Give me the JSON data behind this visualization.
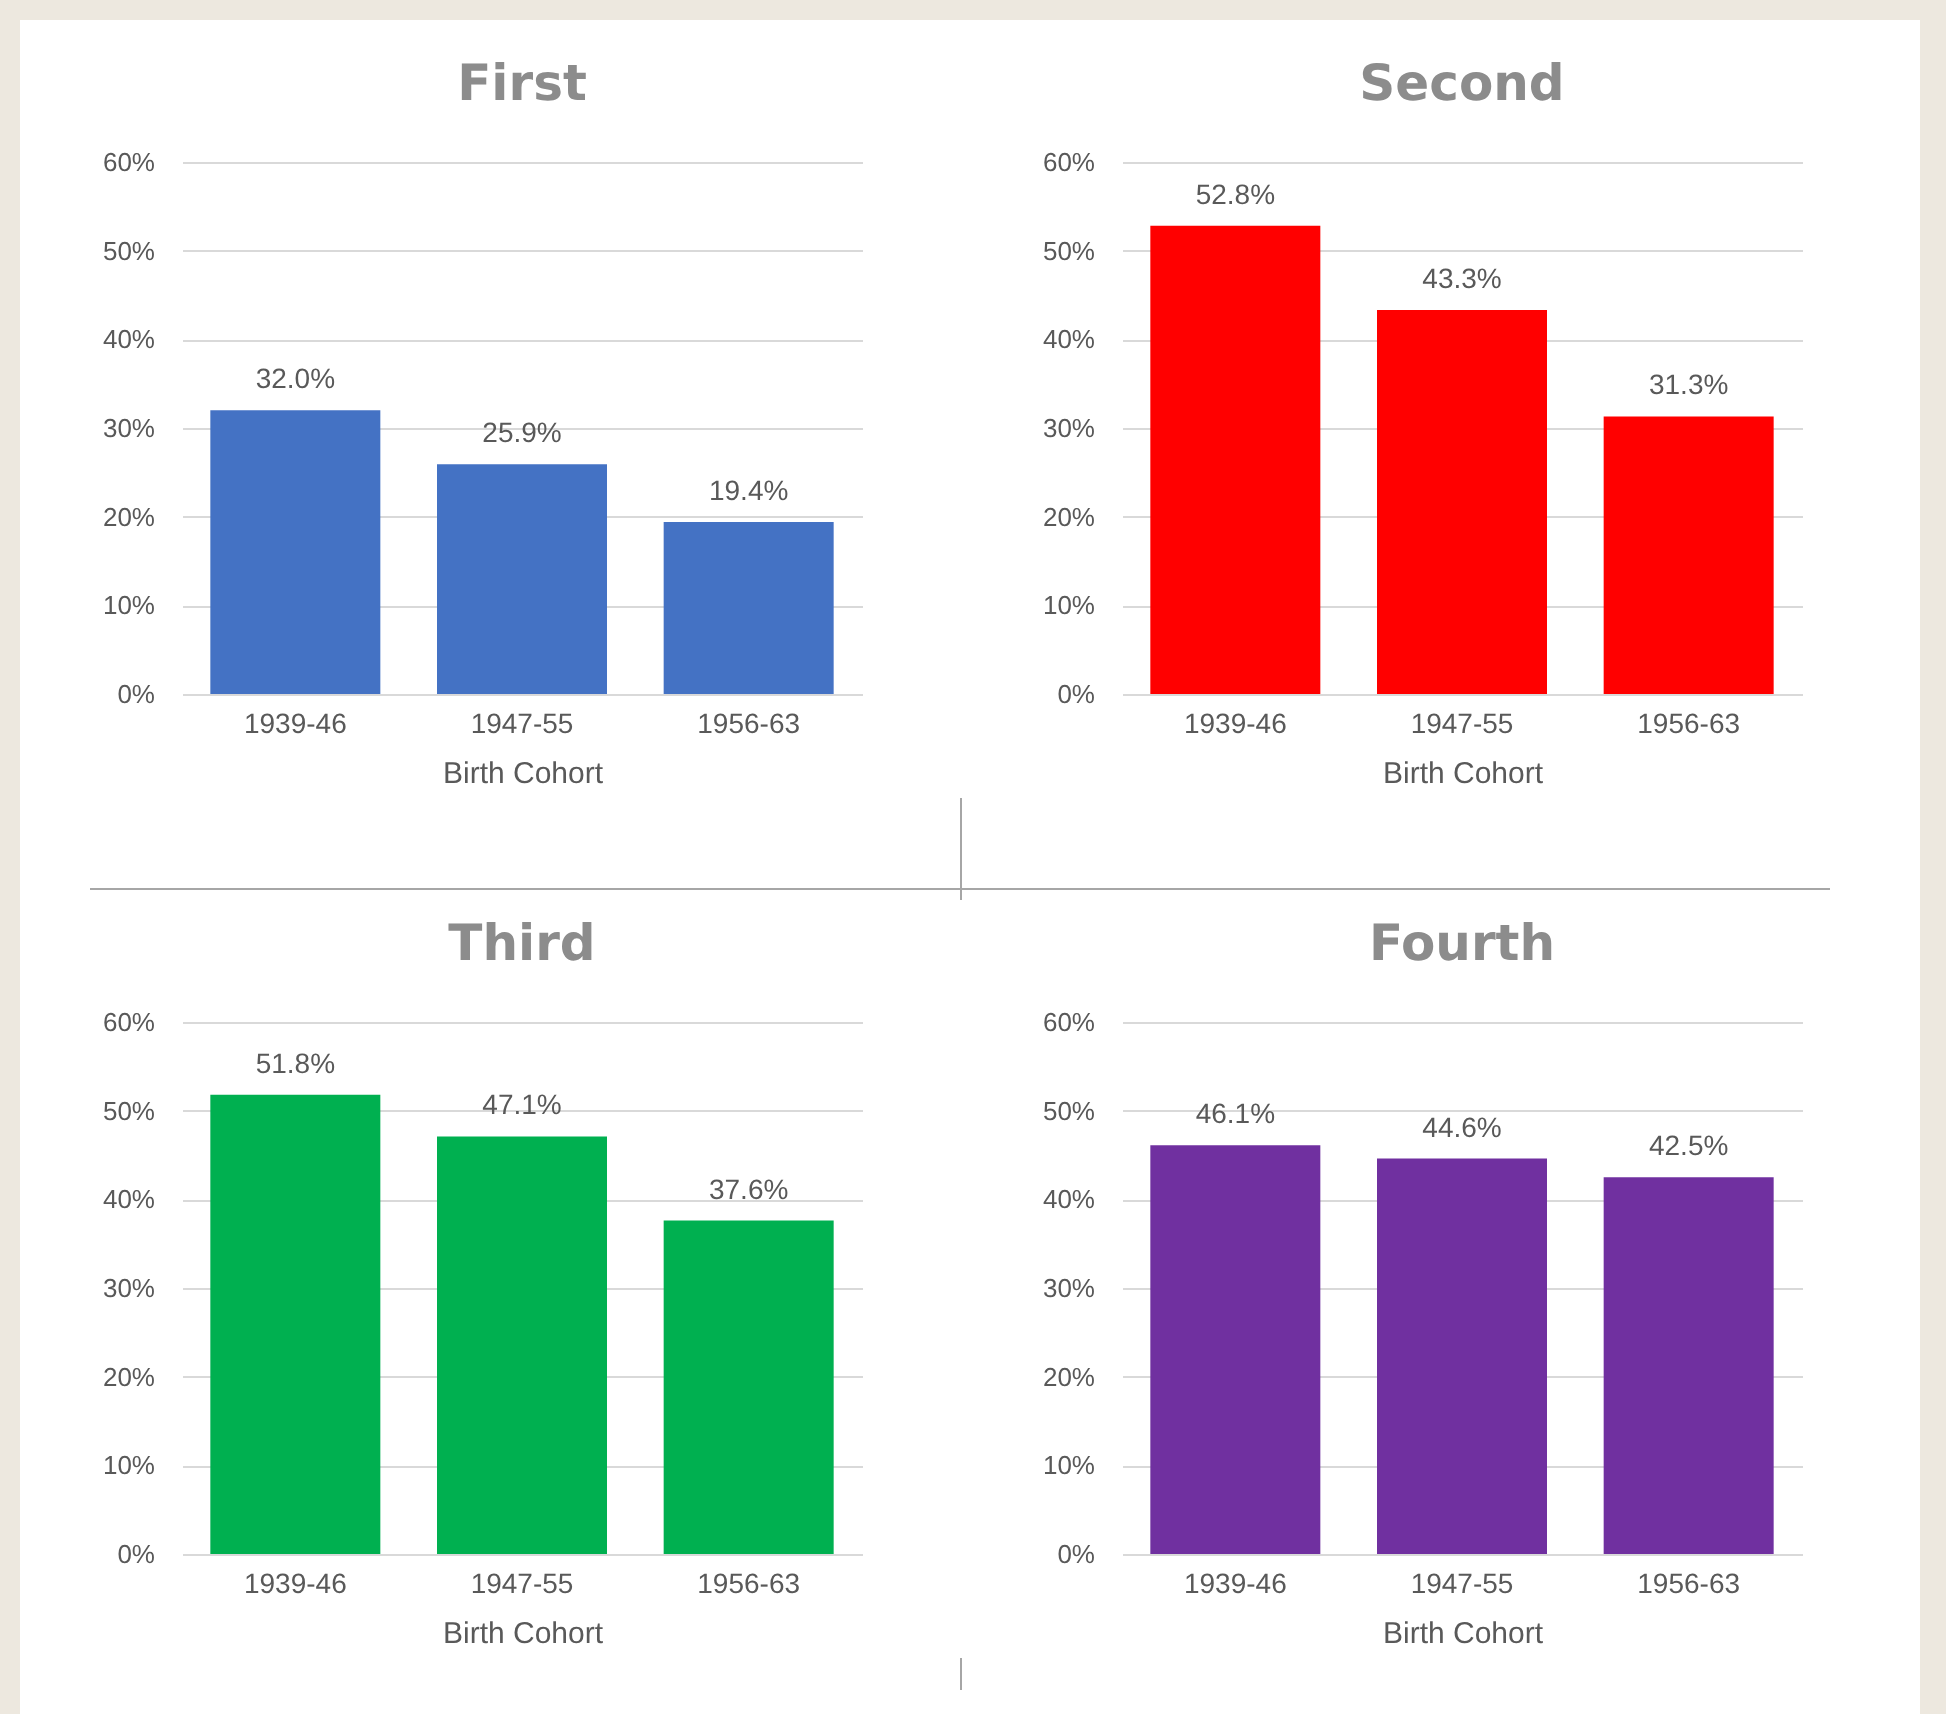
{
  "chart_data": [
    {
      "type": "bar",
      "title": "First",
      "xlabel": "Birth Cohort",
      "categories": [
        "1939-46",
        "1947-55",
        "1956-63"
      ],
      "values": [
        32.0,
        25.9,
        19.4
      ],
      "value_labels": [
        "32.0%",
        "25.9%",
        "19.4%"
      ],
      "color": "#4472c4",
      "ylim": [
        0,
        60
      ],
      "yticks": [
        {
          "value": 0,
          "label": "0%"
        },
        {
          "value": 10,
          "label": "10%"
        },
        {
          "value": 20,
          "label": "20%"
        },
        {
          "value": 30,
          "label": "30%"
        },
        {
          "value": 40,
          "label": "40%"
        },
        {
          "value": 50,
          "label": "50%"
        },
        {
          "value": 60,
          "label": "60%"
        }
      ],
      "grid": "y"
    },
    {
      "type": "bar",
      "title": "Second",
      "xlabel": "Birth Cohort",
      "categories": [
        "1939-46",
        "1947-55",
        "1956-63"
      ],
      "values": [
        52.8,
        43.3,
        31.3
      ],
      "value_labels": [
        "52.8%",
        "43.3%",
        "31.3%"
      ],
      "color": "#ff0000",
      "ylim": [
        0,
        60
      ],
      "yticks": [
        {
          "value": 0,
          "label": "0%"
        },
        {
          "value": 10,
          "label": "10%"
        },
        {
          "value": 20,
          "label": "20%"
        },
        {
          "value": 30,
          "label": "30%"
        },
        {
          "value": 40,
          "label": "40%"
        },
        {
          "value": 50,
          "label": "50%"
        },
        {
          "value": 60,
          "label": "60%"
        }
      ],
      "grid": "y"
    },
    {
      "type": "bar",
      "title": "Third",
      "xlabel": "Birth Cohort",
      "categories": [
        "1939-46",
        "1947-55",
        "1956-63"
      ],
      "values": [
        51.8,
        47.1,
        37.6
      ],
      "value_labels": [
        "51.8%",
        "47.1%",
        "37.6%"
      ],
      "color": "#00b050",
      "ylim": [
        0,
        60
      ],
      "yticks": [
        {
          "value": 0,
          "label": "0%"
        },
        {
          "value": 10,
          "label": "10%"
        },
        {
          "value": 20,
          "label": "20%"
        },
        {
          "value": 30,
          "label": "30%"
        },
        {
          "value": 40,
          "label": "40%"
        },
        {
          "value": 50,
          "label": "50%"
        },
        {
          "value": 60,
          "label": "60%"
        }
      ],
      "grid": "y"
    },
    {
      "type": "bar",
      "title": "Fourth",
      "xlabel": "Birth Cohort",
      "categories": [
        "1939-46",
        "1947-55",
        "1956-63"
      ],
      "values": [
        46.1,
        44.6,
        42.5
      ],
      "value_labels": [
        "46.1%",
        "44.6%",
        "42.5%"
      ],
      "color": "#7030a0",
      "ylim": [
        0,
        60
      ],
      "yticks": [
        {
          "value": 0,
          "label": "0%"
        },
        {
          "value": 10,
          "label": "10%"
        },
        {
          "value": 20,
          "label": "20%"
        },
        {
          "value": 30,
          "label": "30%"
        },
        {
          "value": 40,
          "label": "40%"
        },
        {
          "value": 50,
          "label": "50%"
        },
        {
          "value": 60,
          "label": "60%"
        }
      ],
      "grid": "y"
    }
  ]
}
